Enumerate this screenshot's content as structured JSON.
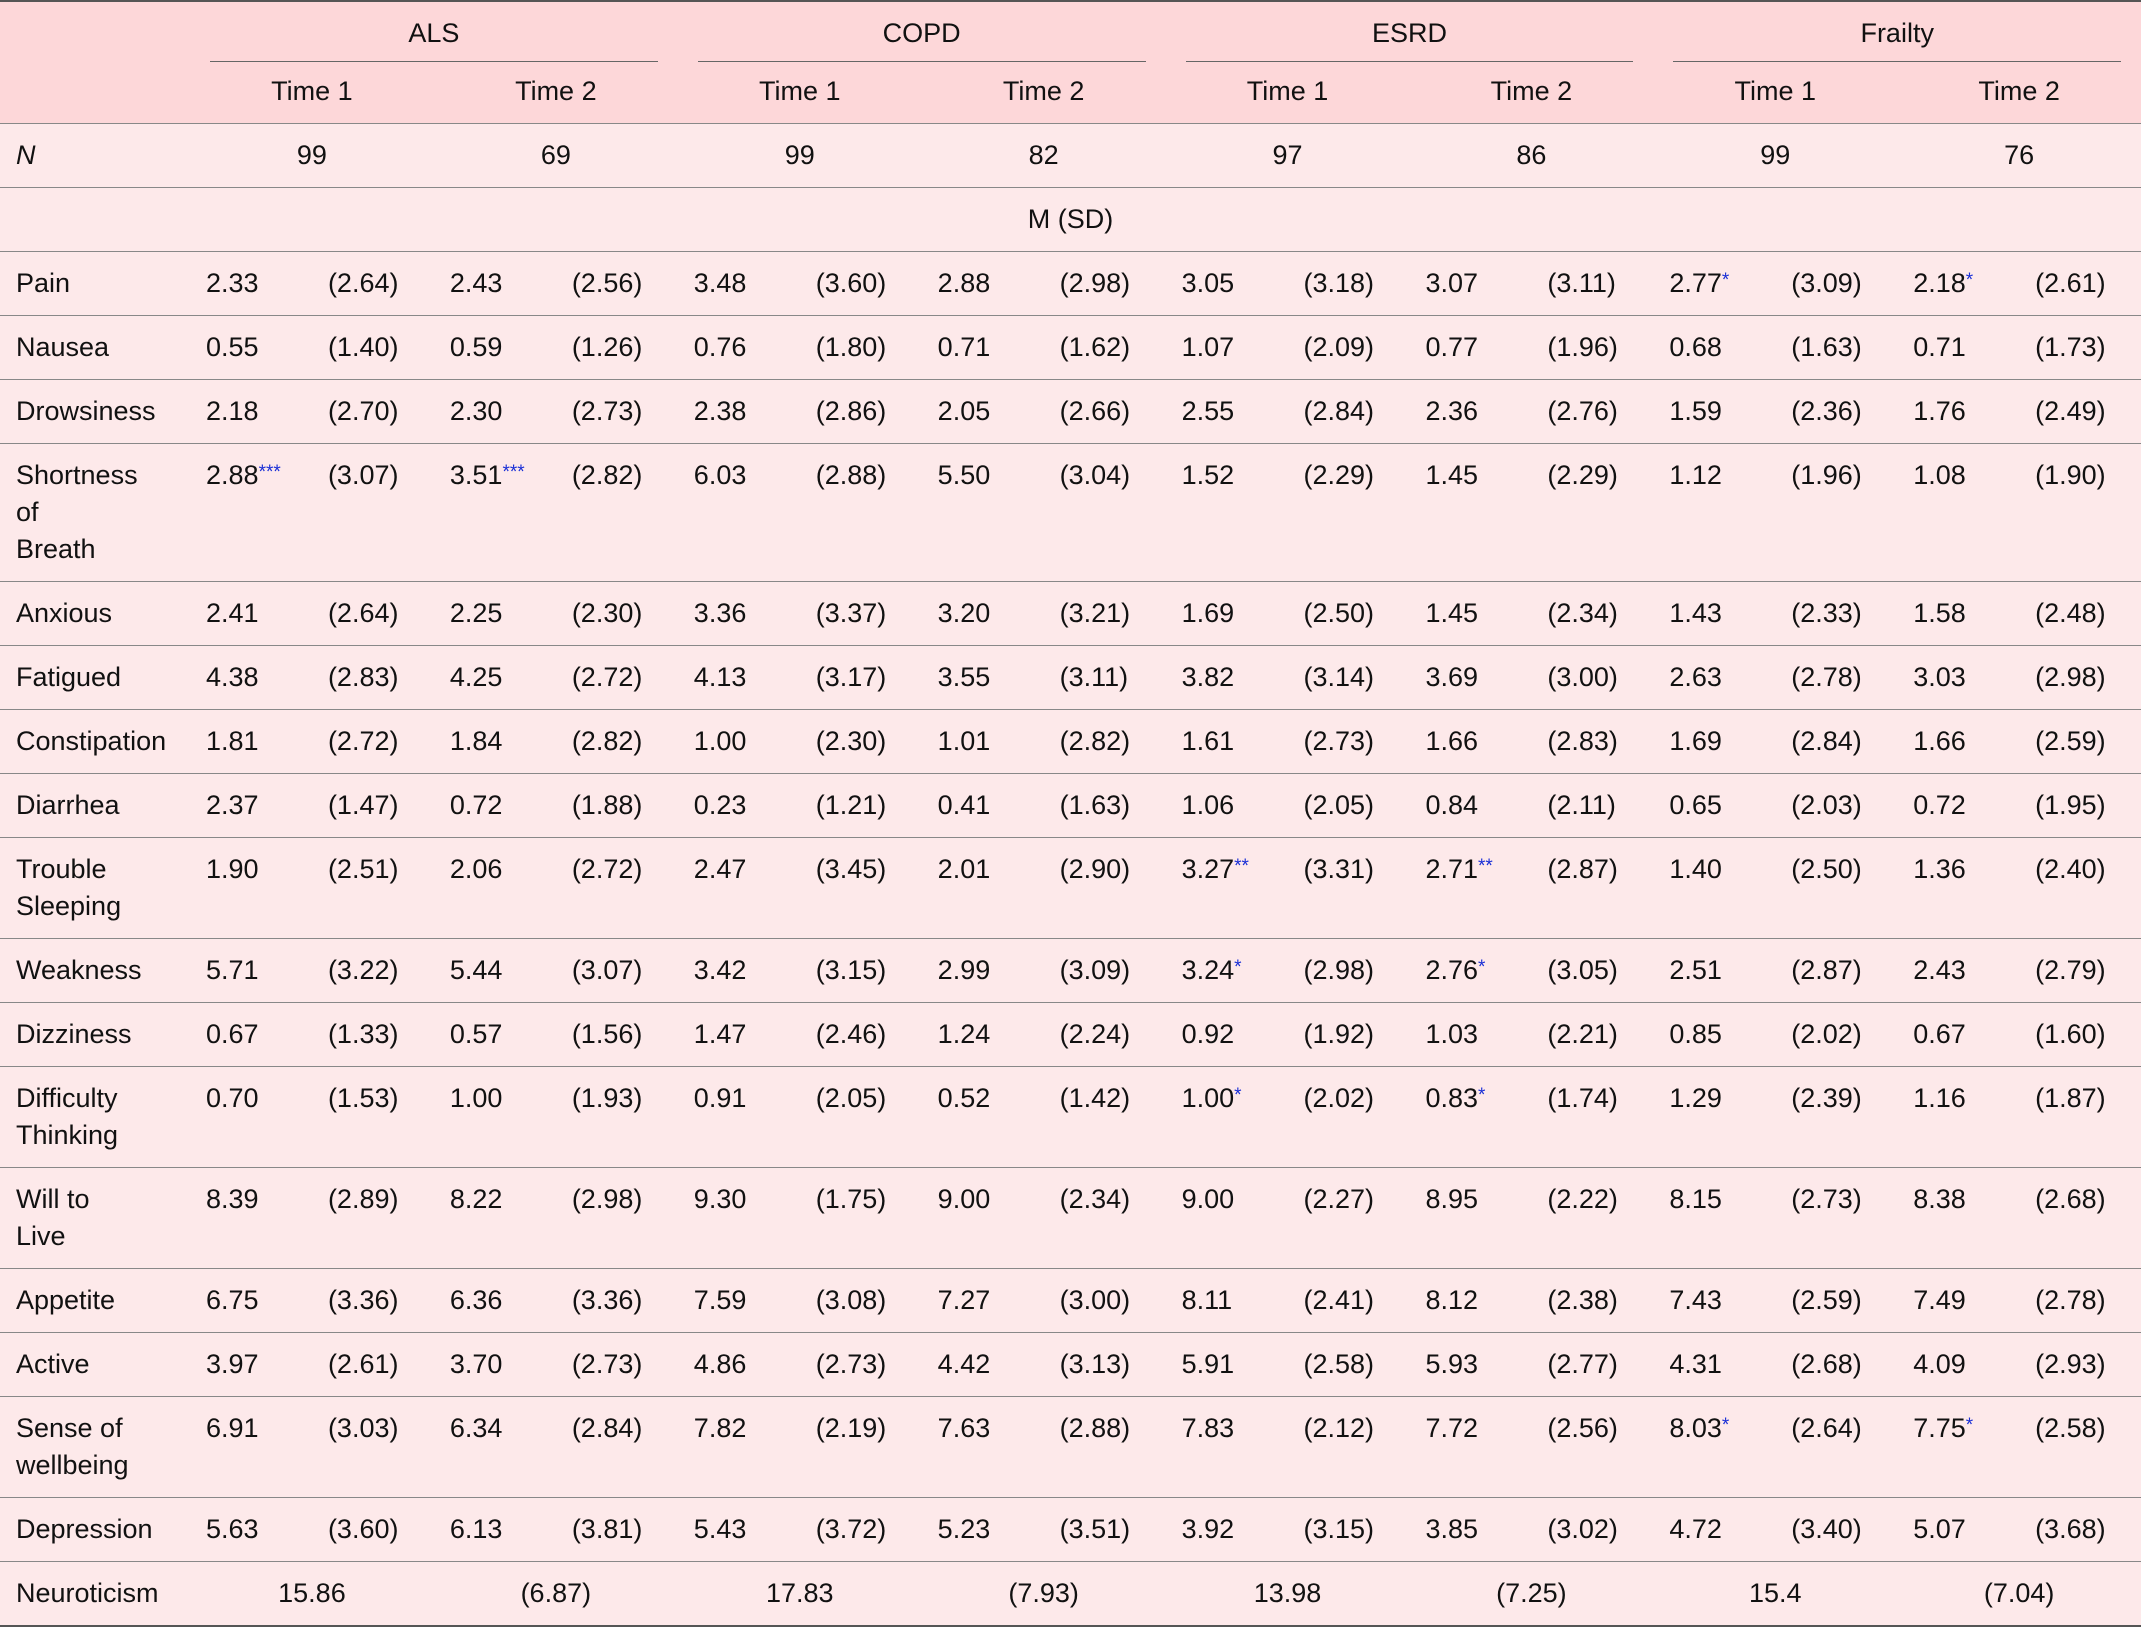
{
  "table": {
    "groups": [
      "ALS",
      "COPD",
      "ESRD",
      "Frailty"
    ],
    "times": [
      "Time 1",
      "Time 2"
    ],
    "n_label": "N",
    "n": [
      99,
      69,
      99,
      82,
      97,
      86,
      99,
      76
    ],
    "stat_label": "M (SD)",
    "rows": [
      {
        "label": [
          "Pain"
        ],
        "cells": [
          [
            "2.33",
            "(2.64)"
          ],
          [
            "2.43",
            "(2.56)"
          ],
          [
            "3.48",
            "(3.60)"
          ],
          [
            "2.88",
            "(2.98)"
          ],
          [
            "3.05",
            "(3.18)"
          ],
          [
            "3.07",
            "(3.11)"
          ],
          [
            "2.77",
            "(3.09)",
            "*"
          ],
          [
            "2.18",
            "(2.61)",
            "*"
          ]
        ]
      },
      {
        "label": [
          "Nausea"
        ],
        "cells": [
          [
            "0.55",
            "(1.40)"
          ],
          [
            "0.59",
            "(1.26)"
          ],
          [
            "0.76",
            "(1.80)"
          ],
          [
            "0.71",
            "(1.62)"
          ],
          [
            "1.07",
            "(2.09)"
          ],
          [
            "0.77",
            "(1.96)"
          ],
          [
            "0.68",
            "(1.63)"
          ],
          [
            "0.71",
            "(1.73)"
          ]
        ]
      },
      {
        "label": [
          "Drowsiness"
        ],
        "cells": [
          [
            "2.18",
            "(2.70)"
          ],
          [
            "2.30",
            "(2.73)"
          ],
          [
            "2.38",
            "(2.86)"
          ],
          [
            "2.05",
            "(2.66)"
          ],
          [
            "2.55",
            "(2.84)"
          ],
          [
            "2.36",
            "(2.76)"
          ],
          [
            "1.59",
            "(2.36)"
          ],
          [
            "1.76",
            "(2.49)"
          ]
        ]
      },
      {
        "label": [
          "Shortness",
          "of",
          "Breath"
        ],
        "cells": [
          [
            "2.88",
            "(3.07)",
            "***"
          ],
          [
            "3.51",
            "(2.82)",
            "***"
          ],
          [
            "6.03",
            "(2.88)"
          ],
          [
            "5.50",
            "(3.04)"
          ],
          [
            "1.52",
            "(2.29)"
          ],
          [
            "1.45",
            "(2.29)"
          ],
          [
            "1.12",
            "(1.96)"
          ],
          [
            "1.08",
            "(1.90)"
          ]
        ]
      },
      {
        "label": [
          "Anxious"
        ],
        "cells": [
          [
            "2.41",
            "(2.64)"
          ],
          [
            "2.25",
            "(2.30)"
          ],
          [
            "3.36",
            "(3.37)"
          ],
          [
            "3.20",
            "(3.21)"
          ],
          [
            "1.69",
            "(2.50)"
          ],
          [
            "1.45",
            "(2.34)"
          ],
          [
            "1.43",
            "(2.33)"
          ],
          [
            "1.58",
            "(2.48)"
          ]
        ]
      },
      {
        "label": [
          "Fatigued"
        ],
        "cells": [
          [
            "4.38",
            "(2.83)"
          ],
          [
            "4.25",
            "(2.72)"
          ],
          [
            "4.13",
            "(3.17)"
          ],
          [
            "3.55",
            "(3.11)"
          ],
          [
            "3.82",
            "(3.14)"
          ],
          [
            "3.69",
            "(3.00)"
          ],
          [
            "2.63",
            "(2.78)"
          ],
          [
            "3.03",
            "(2.98)"
          ]
        ]
      },
      {
        "label": [
          "Constipation"
        ],
        "cells": [
          [
            "1.81",
            "(2.72)"
          ],
          [
            "1.84",
            "(2.82)"
          ],
          [
            "1.00",
            "(2.30)"
          ],
          [
            "1.01",
            "(2.82)"
          ],
          [
            "1.61",
            "(2.73)"
          ],
          [
            "1.66",
            "(2.83)"
          ],
          [
            "1.69",
            "(2.84)"
          ],
          [
            "1.66",
            "(2.59)"
          ]
        ]
      },
      {
        "label": [
          "Diarrhea"
        ],
        "cells": [
          [
            "2.37",
            "(1.47)"
          ],
          [
            "0.72",
            "(1.88)"
          ],
          [
            "0.23",
            "(1.21)"
          ],
          [
            "0.41",
            "(1.63)"
          ],
          [
            "1.06",
            "(2.05)"
          ],
          [
            "0.84",
            "(2.11)"
          ],
          [
            "0.65",
            "(2.03)"
          ],
          [
            "0.72",
            "(1.95)"
          ]
        ]
      },
      {
        "label": [
          "Trouble",
          "Sleeping"
        ],
        "cells": [
          [
            "1.90",
            "(2.51)"
          ],
          [
            "2.06",
            "(2.72)"
          ],
          [
            "2.47",
            "(3.45)"
          ],
          [
            "2.01",
            "(2.90)"
          ],
          [
            "3.27",
            "(3.31)",
            "**"
          ],
          [
            "2.71",
            "(2.87)",
            "**"
          ],
          [
            "1.40",
            "(2.50)"
          ],
          [
            "1.36",
            "(2.40)"
          ]
        ]
      },
      {
        "label": [
          "Weakness"
        ],
        "cells": [
          [
            "5.71",
            "(3.22)"
          ],
          [
            "5.44",
            "(3.07)"
          ],
          [
            "3.42",
            "(3.15)"
          ],
          [
            "2.99",
            "(3.09)"
          ],
          [
            "3.24",
            "(2.98)",
            "*"
          ],
          [
            "2.76",
            "(3.05)",
            "*"
          ],
          [
            "2.51",
            "(2.87)"
          ],
          [
            "2.43",
            "(2.79)"
          ]
        ]
      },
      {
        "label": [
          "Dizziness"
        ],
        "cells": [
          [
            "0.67",
            "(1.33)"
          ],
          [
            "0.57",
            "(1.56)"
          ],
          [
            "1.47",
            "(2.46)"
          ],
          [
            "1.24",
            "(2.24)"
          ],
          [
            "0.92",
            "(1.92)"
          ],
          [
            "1.03",
            "(2.21)"
          ],
          [
            "0.85",
            "(2.02)"
          ],
          [
            "0.67",
            "(1.60)"
          ]
        ]
      },
      {
        "label": [
          "Difficulty",
          "Thinking"
        ],
        "cells": [
          [
            "0.70",
            "(1.53)"
          ],
          [
            "1.00",
            "(1.93)"
          ],
          [
            "0.91",
            "(2.05)"
          ],
          [
            "0.52",
            "(1.42)"
          ],
          [
            "1.00",
            "(2.02)",
            "*"
          ],
          [
            "0.83",
            "(1.74)",
            "*"
          ],
          [
            "1.29",
            "(2.39)"
          ],
          [
            "1.16",
            "(1.87)"
          ]
        ]
      },
      {
        "label": [
          "Will to",
          "Live"
        ],
        "cells": [
          [
            "8.39",
            "(2.89)"
          ],
          [
            "8.22",
            "(2.98)"
          ],
          [
            "9.30",
            "(1.75)"
          ],
          [
            "9.00",
            "(2.34)"
          ],
          [
            "9.00",
            "(2.27)"
          ],
          [
            "8.95",
            "(2.22)"
          ],
          [
            "8.15",
            "(2.73)"
          ],
          [
            "8.38",
            "(2.68)"
          ]
        ]
      },
      {
        "label": [
          "Appetite"
        ],
        "cells": [
          [
            "6.75",
            "(3.36)"
          ],
          [
            "6.36",
            "(3.36)"
          ],
          [
            "7.59",
            "(3.08)"
          ],
          [
            "7.27",
            "(3.00)"
          ],
          [
            "8.11",
            "(2.41)"
          ],
          [
            "8.12",
            "(2.38)"
          ],
          [
            "7.43",
            "(2.59)"
          ],
          [
            "7.49",
            "(2.78)"
          ]
        ]
      },
      {
        "label": [
          "Active"
        ],
        "cells": [
          [
            "3.97",
            "(2.61)"
          ],
          [
            "3.70",
            "(2.73)"
          ],
          [
            "4.86",
            "(2.73)"
          ],
          [
            "4.42",
            "(3.13)"
          ],
          [
            "5.91",
            "(2.58)"
          ],
          [
            "5.93",
            "(2.77)"
          ],
          [
            "4.31",
            "(2.68)"
          ],
          [
            "4.09",
            "(2.93)"
          ]
        ]
      },
      {
        "label": [
          "Sense of",
          "wellbeing"
        ],
        "cells": [
          [
            "6.91",
            "(3.03)"
          ],
          [
            "6.34",
            "(2.84)"
          ],
          [
            "7.82",
            "(2.19)"
          ],
          [
            "7.63",
            "(2.88)"
          ],
          [
            "7.83",
            "(2.12)"
          ],
          [
            "7.72",
            "(2.56)"
          ],
          [
            "8.03",
            "(2.64)",
            "*"
          ],
          [
            "7.75",
            "(2.58)",
            "*"
          ]
        ]
      },
      {
        "label": [
          "Depression"
        ],
        "cells": [
          [
            "5.63",
            "(3.60)"
          ],
          [
            "6.13",
            "(3.81)"
          ],
          [
            "5.43",
            "(3.72)"
          ],
          [
            "5.23",
            "(3.51)"
          ],
          [
            "3.92",
            "(3.15)"
          ],
          [
            "3.85",
            "(3.02)"
          ],
          [
            "4.72",
            "(3.40)"
          ],
          [
            "5.07",
            "(3.68)"
          ]
        ]
      }
    ],
    "summary": {
      "label": [
        "Neuroticism"
      ],
      "cells": [
        [
          "15.86",
          "(6.87)"
        ],
        [
          "17.83",
          "(7.93)"
        ],
        [
          "13.98",
          "(7.25)"
        ],
        [
          "15.4",
          "(7.04)"
        ]
      ]
    }
  }
}
